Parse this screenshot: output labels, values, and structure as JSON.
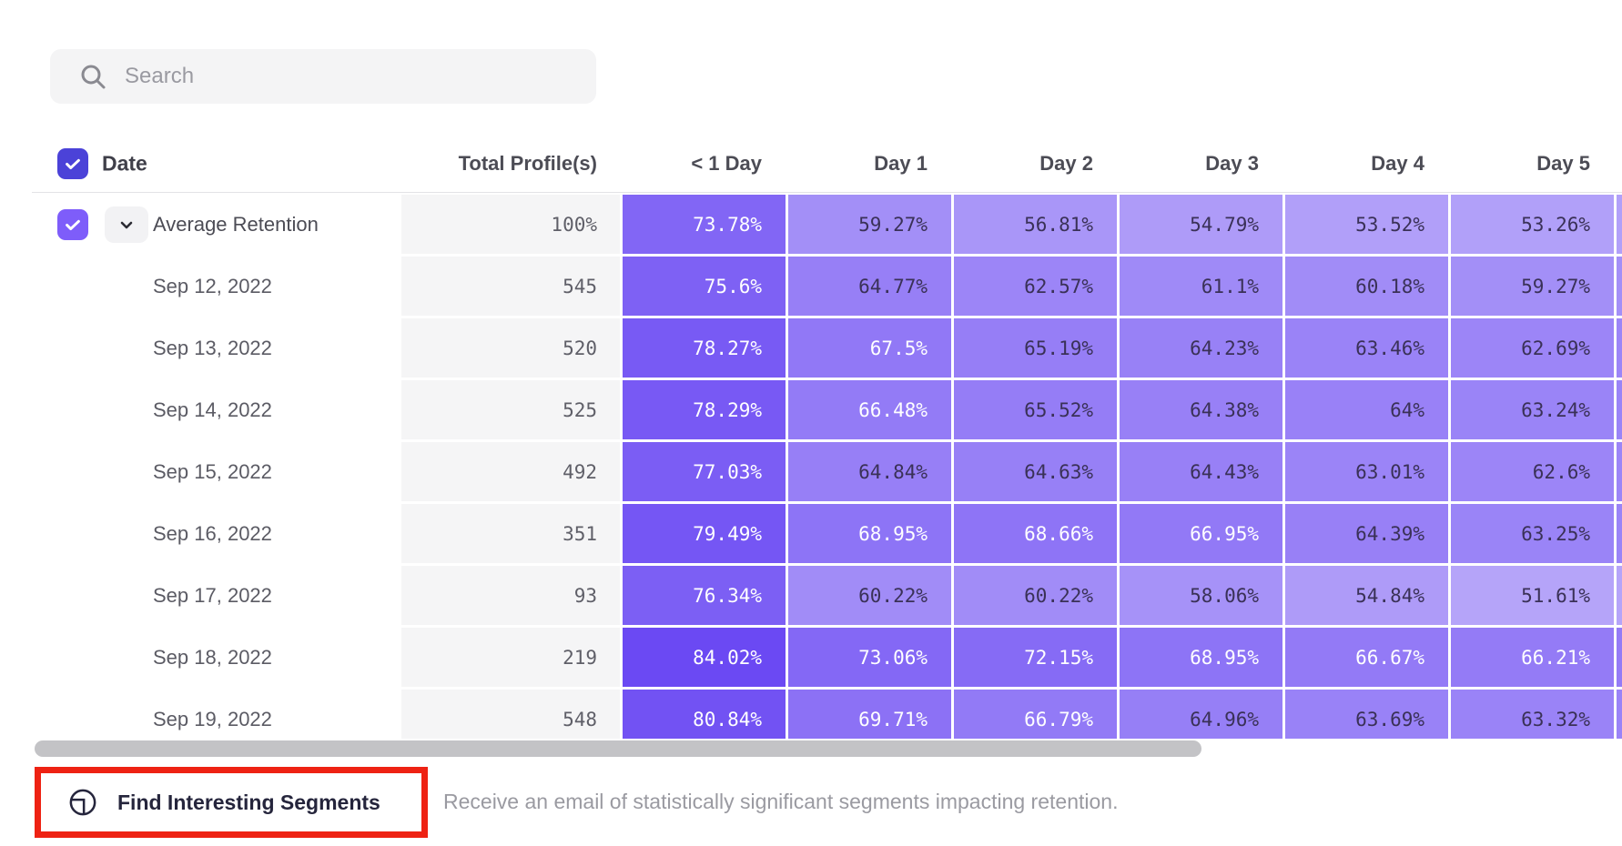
{
  "search": {
    "placeholder": "Search"
  },
  "table": {
    "date_header": "Date",
    "total_header": "Total Profile(s)",
    "day_headers": [
      "< 1 Day",
      "Day 1",
      "Day 2",
      "Day 3",
      "Day 4",
      "Day 5"
    ],
    "rows": [
      {
        "label": "Average Retention",
        "total": "100%",
        "checked": true,
        "expandable": true,
        "values": [
          "73.78%",
          "59.27%",
          "56.81%",
          "54.79%",
          "53.52%",
          "53.26%"
        ]
      },
      {
        "label": "Sep 12, 2022",
        "total": "545",
        "values": [
          "75.6%",
          "64.77%",
          "62.57%",
          "61.1%",
          "60.18%",
          "59.27%"
        ]
      },
      {
        "label": "Sep 13, 2022",
        "total": "520",
        "values": [
          "78.27%",
          "67.5%",
          "65.19%",
          "64.23%",
          "63.46%",
          "62.69%"
        ]
      },
      {
        "label": "Sep 14, 2022",
        "total": "525",
        "values": [
          "78.29%",
          "66.48%",
          "65.52%",
          "64.38%",
          "64%",
          "63.24%"
        ]
      },
      {
        "label": "Sep 15, 2022",
        "total": "492",
        "values": [
          "77.03%",
          "64.84%",
          "64.63%",
          "64.43%",
          "63.01%",
          "62.6%"
        ]
      },
      {
        "label": "Sep 16, 2022",
        "total": "351",
        "values": [
          "79.49%",
          "68.95%",
          "68.66%",
          "66.95%",
          "64.39%",
          "63.25%"
        ]
      },
      {
        "label": "Sep 17, 2022",
        "total": "93",
        "values": [
          "76.34%",
          "60.22%",
          "60.22%",
          "58.06%",
          "54.84%",
          "51.61%"
        ]
      },
      {
        "label": "Sep 18, 2022",
        "total": "219",
        "values": [
          "84.02%",
          "73.06%",
          "72.15%",
          "68.95%",
          "66.67%",
          "66.21%"
        ]
      },
      {
        "label": "Sep 19, 2022",
        "total": "548",
        "values": [
          "80.84%",
          "69.71%",
          "66.79%",
          "64.96%",
          "63.69%",
          "63.32%"
        ]
      }
    ]
  },
  "heatmap": {
    "base_color_rgb": [
      74,
      33,
      240
    ],
    "dark_text_color": "#3a3157",
    "white_text_min_value": 66
  },
  "colors": {
    "header_checkbox": "#4b42d8",
    "row_checkbox": "#7e5dfa",
    "annotation_red": "#ee2213"
  },
  "footer": {
    "button_label": "Find Interesting Segments",
    "description": "Receive an email of statistically significant segments impacting retention."
  }
}
